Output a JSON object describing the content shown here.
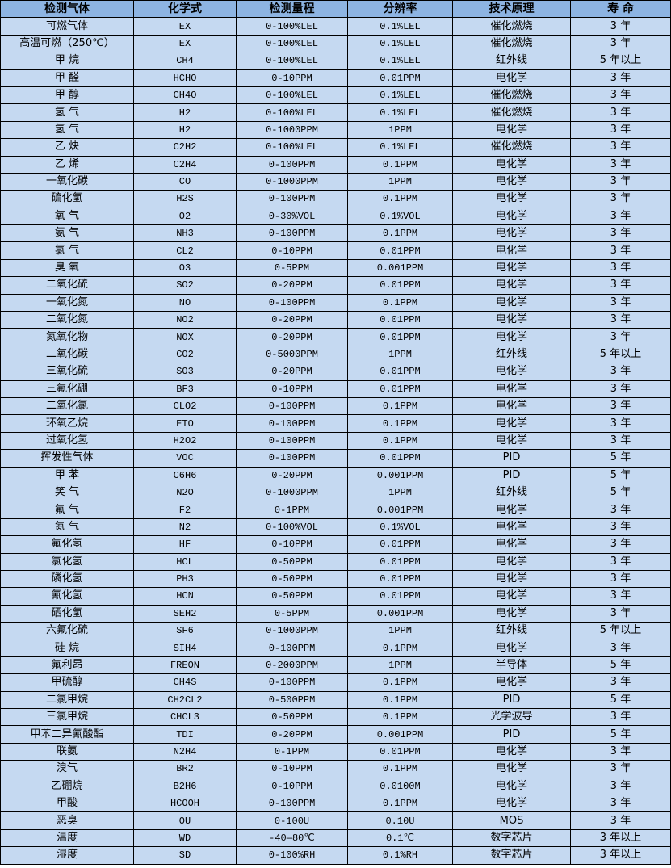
{
  "table": {
    "headers": [
      "检测气体",
      "化学式",
      "检测量程",
      "分辨率",
      "技术原理",
      "寿 命"
    ],
    "rows": [
      [
        "可燃气体",
        "EX",
        "0-100%LEL",
        "0.1%LEL",
        "催化燃烧",
        "3 年"
      ],
      [
        "高温可燃（250℃）",
        "EX",
        "0-100%LEL",
        "0.1%LEL",
        "催化燃烧",
        "3 年"
      ],
      [
        "甲 烷",
        "CH4",
        "0-100%LEL",
        "0.1%LEL",
        "红外线",
        "5 年以上"
      ],
      [
        "甲 醛",
        "HCHO",
        "0-10PPM",
        "0.01PPM",
        "电化学",
        "3 年"
      ],
      [
        "甲 醇",
        "CH4O",
        "0-100%LEL",
        "0.1%LEL",
        "催化燃烧",
        "3 年"
      ],
      [
        "氢 气",
        "H2",
        "0-100%LEL",
        "0.1%LEL",
        "催化燃烧",
        "3 年"
      ],
      [
        "氢 气",
        "H2",
        "0-1000PPM",
        "1PPM",
        "电化学",
        "3 年"
      ],
      [
        "乙 炔",
        "C2H2",
        "0-100%LEL",
        "0.1%LEL",
        "催化燃烧",
        "3 年"
      ],
      [
        "乙 烯",
        "C2H4",
        "0-100PPM",
        "0.1PPM",
        "电化学",
        "3 年"
      ],
      [
        "一氧化碳",
        "CO",
        "0-1000PPM",
        "1PPM",
        "电化学",
        "3 年"
      ],
      [
        "硫化氢",
        "H2S",
        "0-100PPM",
        "0.1PPM",
        "电化学",
        "3 年"
      ],
      [
        "氧 气",
        "O2",
        "0-30%VOL",
        "0.1%VOL",
        "电化学",
        "3 年"
      ],
      [
        "氨 气",
        "NH3",
        "0-100PPM",
        "0.1PPM",
        "电化学",
        "3 年"
      ],
      [
        "氯 气",
        "CL2",
        "0-10PPM",
        "0.01PPM",
        "电化学",
        "3 年"
      ],
      [
        "臭 氧",
        "O3",
        "0-5PPM",
        "0.001PPM",
        "电化学",
        "3 年"
      ],
      [
        "二氧化硫",
        "SO2",
        "0-20PPM",
        "0.01PPM",
        "电化学",
        "3 年"
      ],
      [
        "一氧化氮",
        "NO",
        "0-100PPM",
        "0.1PPM",
        "电化学",
        "3 年"
      ],
      [
        "二氧化氮",
        "NO2",
        "0-20PPM",
        "0.01PPM",
        "电化学",
        "3 年"
      ],
      [
        "氮氧化物",
        "NOX",
        "0-20PPM",
        "0.01PPM",
        "电化学",
        "3 年"
      ],
      [
        "二氧化碳",
        "CO2",
        "0-5000PPM",
        "1PPM",
        "红外线",
        "5 年以上"
      ],
      [
        "三氧化硫",
        "SO3",
        "0-20PPM",
        "0.01PPM",
        "电化学",
        "3 年"
      ],
      [
        "三氟化硼",
        "BF3",
        "0-10PPM",
        "0.01PPM",
        "电化学",
        "3 年"
      ],
      [
        "二氧化氯",
        "CLO2",
        "0-100PPM",
        "0.1PPM",
        "电化学",
        "3 年"
      ],
      [
        "环氧乙烷",
        "ETO",
        "0-100PPM",
        "0.1PPM",
        "电化学",
        "3 年"
      ],
      [
        "过氧化氢",
        "H2O2",
        "0-100PPM",
        "0.1PPM",
        "电化学",
        "3 年"
      ],
      [
        "挥发性气体",
        "VOC",
        "0-100PPM",
        "0.01PPM",
        "PID",
        "5 年"
      ],
      [
        "甲 苯",
        "C6H6",
        "0-20PPM",
        "0.001PPM",
        "PID",
        "5 年"
      ],
      [
        "笑 气",
        "N2O",
        "0-1000PPM",
        "1PPM",
        "红外线",
        "5 年"
      ],
      [
        "氟 气",
        "F2",
        "0-1PPM",
        "0.001PPM",
        "电化学",
        "3 年"
      ],
      [
        "氮 气",
        "N2",
        "0-100%VOL",
        "0.1%VOL",
        "电化学",
        "3 年"
      ],
      [
        "氟化氢",
        "HF",
        "0-10PPM",
        "0.01PPM",
        "电化学",
        "3 年"
      ],
      [
        "氯化氢",
        "HCL",
        "0-50PPM",
        "0.01PPM",
        "电化学",
        "3 年"
      ],
      [
        "磷化氢",
        "PH3",
        "0-50PPM",
        "0.01PPM",
        "电化学",
        "3 年"
      ],
      [
        "氰化氢",
        "HCN",
        "0-50PPM",
        "0.01PPM",
        "电化学",
        "3 年"
      ],
      [
        "硒化氢",
        "SEH2",
        "0-5PPM",
        "0.001PPM",
        "电化学",
        "3 年"
      ],
      [
        "六氟化硫",
        "SF6",
        "0-1000PPM",
        "1PPM",
        "红外线",
        "5 年以上"
      ],
      [
        "硅 烷",
        "SIH4",
        "0-100PPM",
        "0.1PPM",
        "电化学",
        "3 年"
      ],
      [
        "氟利昂",
        "FREON",
        "0-2000PPM",
        "1PPM",
        "半导体",
        "5 年"
      ],
      [
        "甲硫醇",
        "CH4S",
        "0-100PPM",
        "0.1PPM",
        "电化学",
        "3 年"
      ],
      [
        "二氯甲烷",
        "CH2CL2",
        "0-500PPM",
        "0.1PPM",
        "PID",
        "5 年"
      ],
      [
        "三氯甲烷",
        "CHCL3",
        "0-50PPM",
        "0.1PPM",
        "光学波导",
        "3 年"
      ],
      [
        "甲苯二异氰酸酯",
        "TDI",
        "0-20PPM",
        "0.001PPM",
        "PID",
        "5 年"
      ],
      [
        "联氨",
        "N2H4",
        "0-1PPM",
        "0.01PPM",
        "电化学",
        "3 年"
      ],
      [
        "溴气",
        "BR2",
        "0-10PPM",
        "0.1PPM",
        "电化学",
        "3 年"
      ],
      [
        "乙硼烷",
        "B2H6",
        "0-10PPM",
        "0.0100M",
        "电化学",
        "3 年"
      ],
      [
        "甲酸",
        "HCOOH",
        "0-100PPM",
        "0.1PPM",
        "电化学",
        "3 年"
      ],
      [
        "恶臭",
        "OU",
        "0-100U",
        "0.10U",
        "MOS",
        "3 年"
      ],
      [
        "温度",
        "WD",
        "-40—80℃",
        "0.1℃",
        "数字芯片",
        "3 年以上"
      ],
      [
        "湿度",
        "SD",
        "0-100%RH",
        "0.1%RH",
        "数字芯片",
        "3 年以上"
      ]
    ]
  }
}
